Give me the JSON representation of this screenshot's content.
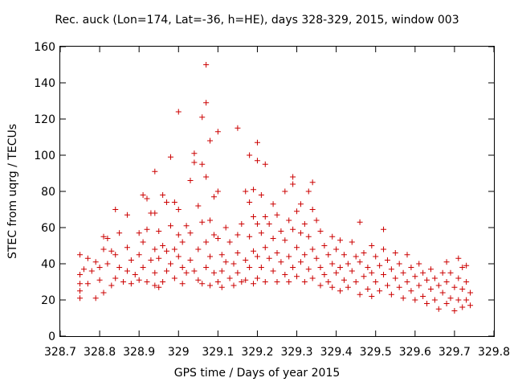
{
  "chart_data": {
    "type": "scatter",
    "title": "Rec. auck (Lon=174, Lat=-36, h=HE), days 328-329, 2015, window 003",
    "xlabel": "GPS time / Days of year 2015",
    "ylabel": "STEC from uqrg / TECUs",
    "xlim": [
      328.7,
      329.8
    ],
    "ylim": [
      0,
      160
    ],
    "x_ticks": [
      "328.7",
      "328.8",
      "328.9",
      "329",
      "329.1",
      "329.2",
      "329.3",
      "329.4",
      "329.5",
      "329.6",
      "329.7",
      "329.8"
    ],
    "y_ticks": [
      "0",
      "20",
      "40",
      "60",
      "80",
      "100",
      "120",
      "140",
      "160"
    ],
    "grid": false,
    "marker": "+",
    "color": "#cc0000",
    "series": [
      {
        "points": [
          [
            328.75,
            45
          ],
          [
            328.75,
            34
          ],
          [
            328.75,
            29
          ],
          [
            328.75,
            25
          ],
          [
            328.75,
            21
          ],
          [
            328.76,
            37
          ],
          [
            328.77,
            43
          ],
          [
            328.77,
            29
          ],
          [
            328.78,
            36
          ],
          [
            328.79,
            21
          ],
          [
            328.79,
            41
          ],
          [
            328.8,
            38
          ],
          [
            328.8,
            31
          ],
          [
            328.81,
            55
          ],
          [
            328.81,
            48
          ],
          [
            328.81,
            24
          ],
          [
            328.82,
            54
          ],
          [
            328.82,
            40
          ],
          [
            328.83,
            47
          ],
          [
            328.83,
            28
          ],
          [
            328.84,
            70
          ],
          [
            328.84,
            45
          ],
          [
            328.84,
            32
          ],
          [
            328.85,
            57
          ],
          [
            328.85,
            38
          ],
          [
            328.86,
            30
          ],
          [
            328.87,
            67
          ],
          [
            328.87,
            49
          ],
          [
            328.87,
            36
          ],
          [
            328.88,
            29
          ],
          [
            328.88,
            42
          ],
          [
            328.89,
            34
          ],
          [
            328.9,
            57
          ],
          [
            328.9,
            31
          ],
          [
            328.9,
            45
          ],
          [
            328.91,
            78
          ],
          [
            328.91,
            52
          ],
          [
            328.91,
            38
          ],
          [
            328.92,
            76
          ],
          [
            328.92,
            30
          ],
          [
            328.92,
            59
          ],
          [
            328.93,
            68
          ],
          [
            328.93,
            42
          ],
          [
            328.94,
            91
          ],
          [
            328.94,
            68
          ],
          [
            328.94,
            48
          ],
          [
            328.94,
            35
          ],
          [
            328.94,
            28
          ],
          [
            328.95,
            58
          ],
          [
            328.95,
            43
          ],
          [
            328.95,
            27
          ],
          [
            328.96,
            78
          ],
          [
            328.96,
            50
          ],
          [
            328.96,
            30
          ],
          [
            328.97,
            74
          ],
          [
            328.97,
            47
          ],
          [
            328.97,
            36
          ],
          [
            328.98,
            99
          ],
          [
            328.98,
            61
          ],
          [
            328.98,
            40
          ],
          [
            328.99,
            74
          ],
          [
            328.99,
            48
          ],
          [
            328.99,
            32
          ],
          [
            329.0,
            124
          ],
          [
            329.0,
            70
          ],
          [
            329.0,
            56
          ],
          [
            329.0,
            44
          ],
          [
            329.01,
            38
          ],
          [
            329.01,
            29
          ],
          [
            329.01,
            52
          ],
          [
            329.02,
            61
          ],
          [
            329.02,
            35
          ],
          [
            329.03,
            86
          ],
          [
            329.03,
            57
          ],
          [
            329.03,
            42
          ],
          [
            329.04,
            101
          ],
          [
            329.04,
            96
          ],
          [
            329.04,
            36
          ],
          [
            329.05,
            72
          ],
          [
            329.05,
            48
          ],
          [
            329.05,
            31
          ],
          [
            329.06,
            121
          ],
          [
            329.06,
            95
          ],
          [
            329.06,
            63
          ],
          [
            329.06,
            29
          ],
          [
            329.07,
            150
          ],
          [
            329.07,
            129
          ],
          [
            329.07,
            88
          ],
          [
            329.07,
            52
          ],
          [
            329.07,
            38
          ],
          [
            329.08,
            108
          ],
          [
            329.08,
            64
          ],
          [
            329.08,
            44
          ],
          [
            329.08,
            28
          ],
          [
            329.09,
            77
          ],
          [
            329.09,
            56
          ],
          [
            329.09,
            35
          ],
          [
            329.1,
            113
          ],
          [
            329.1,
            80
          ],
          [
            329.1,
            54
          ],
          [
            329.1,
            30
          ],
          [
            329.11,
            45
          ],
          [
            329.11,
            36
          ],
          [
            329.11,
            27
          ],
          [
            329.12,
            60
          ],
          [
            329.12,
            41
          ],
          [
            329.13,
            32
          ],
          [
            329.13,
            52
          ],
          [
            329.14,
            40
          ],
          [
            329.14,
            28
          ],
          [
            329.15,
            56
          ],
          [
            329.15,
            115
          ],
          [
            329.15,
            35
          ],
          [
            329.15,
            46
          ],
          [
            329.16,
            30
          ],
          [
            329.16,
            62
          ],
          [
            329.17,
            80
          ],
          [
            329.17,
            42
          ],
          [
            329.17,
            31
          ],
          [
            329.18,
            100
          ],
          [
            329.18,
            74
          ],
          [
            329.18,
            55
          ],
          [
            329.18,
            38
          ],
          [
            329.19,
            81
          ],
          [
            329.19,
            66
          ],
          [
            329.19,
            47
          ],
          [
            329.19,
            29
          ],
          [
            329.2,
            107
          ],
          [
            329.2,
            97
          ],
          [
            329.2,
            62
          ],
          [
            329.2,
            44
          ],
          [
            329.2,
            32
          ],
          [
            329.21,
            78
          ],
          [
            329.21,
            57
          ],
          [
            329.21,
            38
          ],
          [
            329.22,
            95
          ],
          [
            329.22,
            66
          ],
          [
            329.22,
            49
          ],
          [
            329.22,
            30
          ],
          [
            329.23,
            62
          ],
          [
            329.23,
            43
          ],
          [
            329.24,
            73
          ],
          [
            329.24,
            54
          ],
          [
            329.24,
            36
          ],
          [
            329.25,
            67
          ],
          [
            329.25,
            46
          ],
          [
            329.25,
            30
          ],
          [
            329.26,
            58
          ],
          [
            329.26,
            41
          ],
          [
            329.27,
            80
          ],
          [
            329.27,
            53
          ],
          [
            329.27,
            34
          ],
          [
            329.28,
            64
          ],
          [
            329.28,
            44
          ],
          [
            329.28,
            30
          ],
          [
            329.29,
            88
          ],
          [
            329.29,
            84
          ],
          [
            329.29,
            59
          ],
          [
            329.29,
            38
          ],
          [
            329.3,
            69
          ],
          [
            329.3,
            49
          ],
          [
            329.3,
            33
          ],
          [
            329.31,
            73
          ],
          [
            329.31,
            57
          ],
          [
            329.31,
            41
          ],
          [
            329.32,
            62
          ],
          [
            329.32,
            45
          ],
          [
            329.32,
            30
          ],
          [
            329.33,
            80
          ],
          [
            329.33,
            55
          ],
          [
            329.33,
            37
          ],
          [
            329.34,
            85
          ],
          [
            329.34,
            70
          ],
          [
            329.34,
            48
          ],
          [
            329.34,
            32
          ],
          [
            329.35,
            64
          ],
          [
            329.35,
            43
          ],
          [
            329.36,
            58
          ],
          [
            329.36,
            38
          ],
          [
            329.36,
            28
          ],
          [
            329.37,
            50
          ],
          [
            329.37,
            34
          ],
          [
            329.38,
            45
          ],
          [
            329.38,
            30
          ],
          [
            329.39,
            55
          ],
          [
            329.39,
            40
          ],
          [
            329.39,
            27
          ],
          [
            329.4,
            48
          ],
          [
            329.4,
            35
          ],
          [
            329.41,
            53
          ],
          [
            329.41,
            38
          ],
          [
            329.41,
            25
          ],
          [
            329.42,
            45
          ],
          [
            329.42,
            31
          ],
          [
            329.43,
            40
          ],
          [
            329.43,
            27
          ],
          [
            329.44,
            52
          ],
          [
            329.44,
            36
          ],
          [
            329.45,
            44
          ],
          [
            329.45,
            30
          ],
          [
            329.46,
            63
          ],
          [
            329.46,
            41
          ],
          [
            329.46,
            23
          ],
          [
            329.47,
            46
          ],
          [
            329.47,
            33
          ],
          [
            329.48,
            38
          ],
          [
            329.48,
            26
          ],
          [
            329.49,
            50
          ],
          [
            329.49,
            35
          ],
          [
            329.49,
            22
          ],
          [
            329.5,
            44
          ],
          [
            329.5,
            30
          ],
          [
            329.51,
            39
          ],
          [
            329.51,
            25
          ],
          [
            329.52,
            59
          ],
          [
            329.52,
            48
          ],
          [
            329.52,
            34
          ],
          [
            329.53,
            42
          ],
          [
            329.53,
            28
          ],
          [
            329.54,
            37
          ],
          [
            329.54,
            23
          ],
          [
            329.55,
            46
          ],
          [
            329.55,
            32
          ],
          [
            329.56,
            40
          ],
          [
            329.56,
            27
          ],
          [
            329.57,
            35
          ],
          [
            329.57,
            21
          ],
          [
            329.58,
            45
          ],
          [
            329.58,
            30
          ],
          [
            329.59,
            38
          ],
          [
            329.59,
            25
          ],
          [
            329.6,
            33
          ],
          [
            329.6,
            20
          ],
          [
            329.61,
            40
          ],
          [
            329.61,
            28
          ],
          [
            329.62,
            35
          ],
          [
            329.62,
            22
          ],
          [
            329.63,
            31
          ],
          [
            329.63,
            18
          ],
          [
            329.64,
            37
          ],
          [
            329.64,
            26
          ],
          [
            329.65,
            32
          ],
          [
            329.65,
            20
          ],
          [
            329.66,
            28
          ],
          [
            329.66,
            15
          ],
          [
            329.67,
            35
          ],
          [
            329.67,
            24
          ],
          [
            329.68,
            41
          ],
          [
            329.68,
            30
          ],
          [
            329.68,
            18
          ],
          [
            329.69,
            35
          ],
          [
            329.69,
            21
          ],
          [
            329.7,
            27
          ],
          [
            329.7,
            14
          ],
          [
            329.71,
            43
          ],
          [
            329.71,
            32
          ],
          [
            329.71,
            20
          ],
          [
            329.72,
            38
          ],
          [
            329.72,
            26
          ],
          [
            329.72,
            16
          ],
          [
            329.73,
            39
          ],
          [
            329.73,
            30
          ],
          [
            329.73,
            20
          ],
          [
            329.74,
            24
          ],
          [
            329.74,
            17
          ]
        ]
      }
    ]
  }
}
